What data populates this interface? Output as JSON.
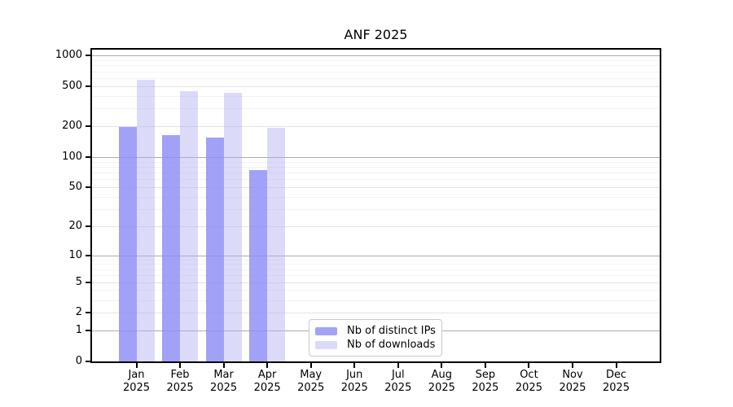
{
  "chart_data": {
    "type": "bar",
    "title": "ANF 2025",
    "categories": [
      "Jan",
      "Feb",
      "Mar",
      "Apr",
      "May",
      "Jun",
      "Jul",
      "Aug",
      "Sep",
      "Oct",
      "Nov",
      "Dec"
    ],
    "category_year": "2025",
    "series": [
      {
        "name": "Nb of distinct IPs",
        "color": "#a3a3f6",
        "color_fill": "rgba(140,140,247,0.82)",
        "values": [
          200,
          165,
          156,
          74,
          null,
          null,
          null,
          null,
          null,
          null,
          null,
          null
        ]
      },
      {
        "name": "Nb of downloads",
        "color": "#dbdbf9",
        "color_fill": "rgba(175,175,242,0.45)",
        "values": [
          580,
          443,
          427,
          196,
          null,
          null,
          null,
          null,
          null,
          null,
          null,
          null
        ]
      }
    ],
    "xlabel": "",
    "ylabel": "",
    "yscale": "symlog",
    "ylim": [
      0,
      1140
    ],
    "y_ticks": [
      0,
      1,
      2,
      5,
      10,
      20,
      50,
      100,
      200,
      500,
      1000
    ],
    "y_minor_ticks": [
      3,
      4,
      6,
      7,
      8,
      9,
      30,
      40,
      60,
      70,
      80,
      90,
      300,
      400,
      600,
      700,
      800,
      900
    ],
    "grid": true,
    "legend_position": "lower-center",
    "colors": {
      "axis": "#000000",
      "grid_major": "#ababab",
      "grid_labeled": "#e3e3e3",
      "grid_minor": "#f3f3f3",
      "background": "#ffffff"
    }
  }
}
